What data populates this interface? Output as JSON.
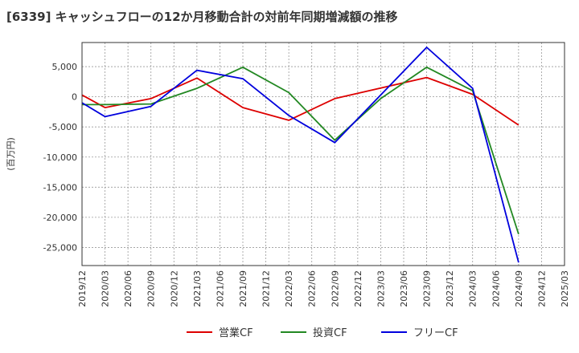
{
  "chart_data": {
    "type": "line",
    "title": "[6339]  キャッシュフローの12か月移動合計の対前年同期増減額の推移",
    "ylabel": "(百万円)",
    "xlabel": "",
    "ylim": [
      -28000,
      9000
    ],
    "yticks": [
      5000,
      0,
      -5000,
      -10000,
      -15000,
      -20000,
      -25000
    ],
    "ytick_labels": [
      "5,000",
      "0",
      "-5,000",
      "-10,000",
      "-15,000",
      "-20,000",
      "-25,000"
    ],
    "x_ticks": [
      "2019/12",
      "2020/03",
      "2020/06",
      "2020/09",
      "2020/12",
      "2021/03",
      "2021/06",
      "2021/09",
      "2021/12",
      "2022/03",
      "2022/06",
      "2022/09",
      "2022/12",
      "2023/03",
      "2023/06",
      "2023/09",
      "2023/12",
      "2024/03",
      "2024/06",
      "2024/09",
      "2024/12",
      "2025/03"
    ],
    "grid": true,
    "legend_position": "bottom",
    "series": [
      {
        "name": "営業CF",
        "color": "#dd0000",
        "x": [
          "2019/12",
          "2020/03",
          "2020/09",
          "2021/03",
          "2021/09",
          "2022/03",
          "2022/09",
          "2023/09",
          "2024/03",
          "2024/09"
        ],
        "values": [
          300,
          -1800,
          -300,
          3100,
          -1800,
          -3900,
          -300,
          3200,
          400,
          -4700
        ]
      },
      {
        "name": "投資CF",
        "color": "#228822",
        "x": [
          "2019/12",
          "2020/03",
          "2020/09",
          "2021/03",
          "2021/09",
          "2022/03",
          "2022/09",
          "2023/03",
          "2023/09",
          "2024/03",
          "2024/09"
        ],
        "values": [
          -1300,
          -1300,
          -1200,
          1400,
          4900,
          700,
          -7200,
          -300,
          4900,
          1000,
          -22800
        ]
      },
      {
        "name": "フリーCF",
        "color": "#0000dd",
        "x": [
          "2019/12",
          "2020/03",
          "2020/09",
          "2021/03",
          "2021/09",
          "2022/03",
          "2022/09",
          "2023/09",
          "2024/03",
          "2024/09"
        ],
        "values": [
          -1000,
          -3300,
          -1600,
          4400,
          3000,
          -3100,
          -7600,
          8200,
          1400,
          -27500
        ]
      }
    ]
  }
}
